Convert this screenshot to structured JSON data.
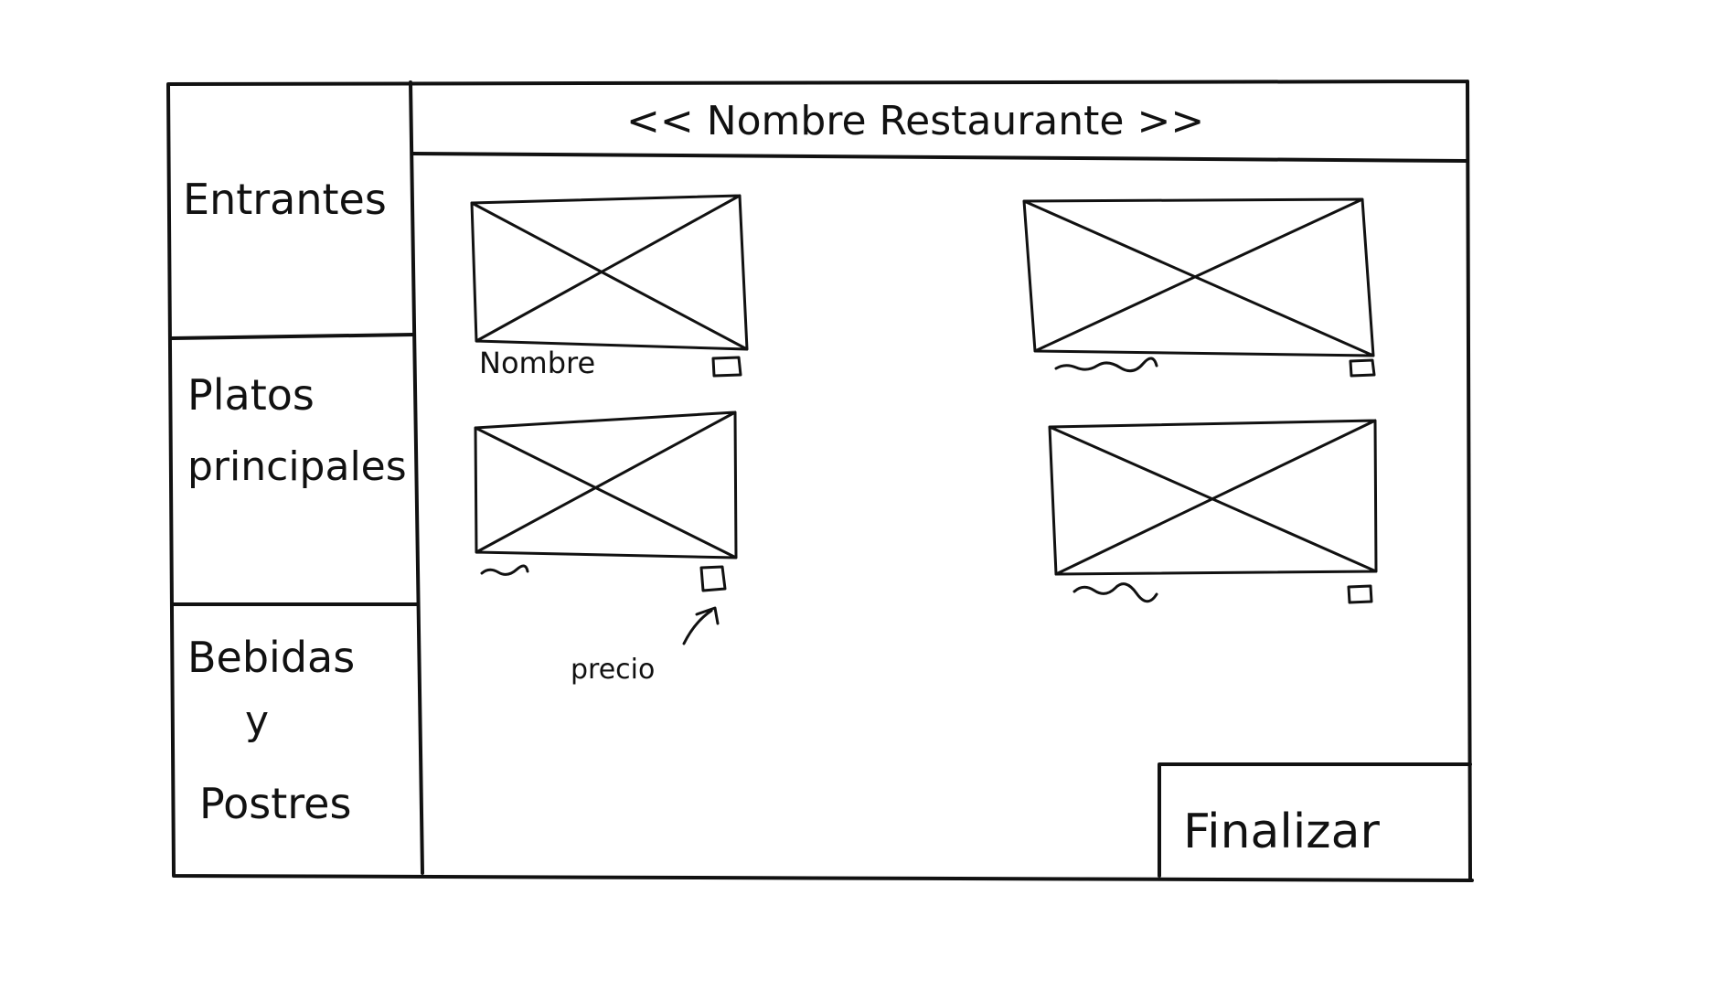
{
  "header": {
    "title": "<< Nombre Restaurante >>"
  },
  "sidebar": {
    "items": [
      {
        "lines": [
          "Entrantes"
        ]
      },
      {
        "lines": [
          "Platos",
          "principales"
        ]
      },
      {
        "lines": [
          "Bebidas",
          "y",
          "Postres"
        ]
      }
    ]
  },
  "main": {
    "cards": [
      {
        "name_label": "Nombre",
        "has_price_box": true
      },
      {
        "name_label": "",
        "has_price_box": true
      },
      {
        "name_label": "",
        "has_price_box": true
      },
      {
        "name_label": "",
        "has_price_box": true
      }
    ],
    "price_annotation": "precio"
  },
  "footer": {
    "finish_label": "Finalizar"
  },
  "colors": {
    "ink": "#111111",
    "paper": "#ffffff"
  },
  "icons": {
    "image_placeholder": "crossed-rectangle",
    "price_box": "small-square",
    "name_placeholder": "squiggle-line",
    "annotation_pointer": "arrow-icon"
  }
}
